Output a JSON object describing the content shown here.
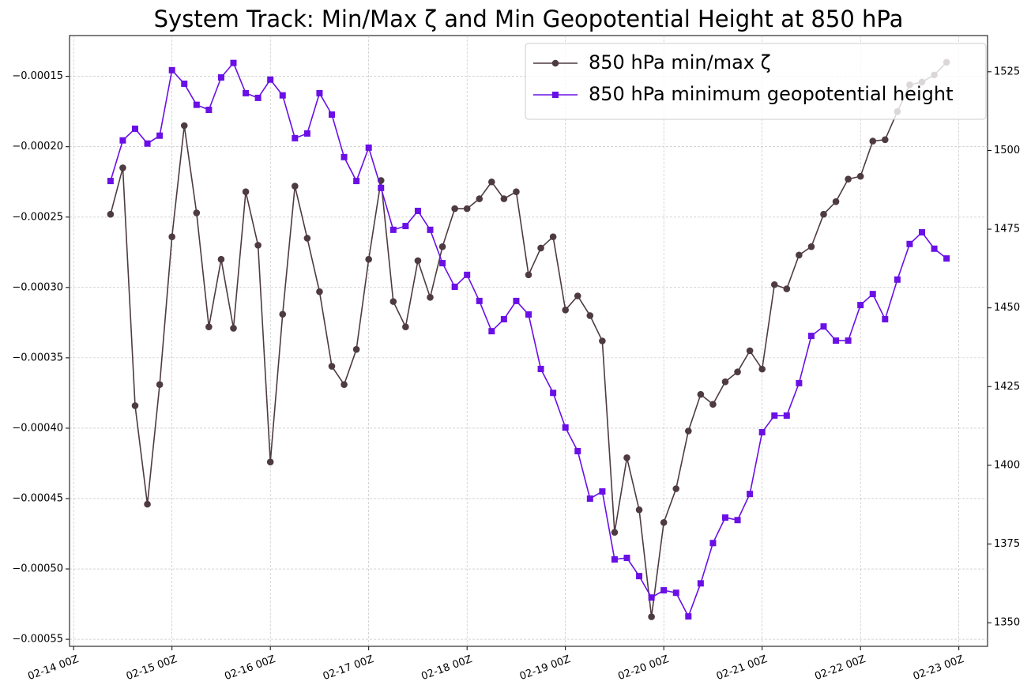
{
  "chart_data": {
    "type": "line",
    "title": "System Track: Min/Max ζ and Min Geopotential Height at 850 hPa",
    "x": [
      "02-14 09Z",
      "02-14 12Z",
      "02-14 15Z",
      "02-14 18Z",
      "02-14 21Z",
      "02-15 00Z",
      "02-15 03Z",
      "02-15 06Z",
      "02-15 09Z",
      "02-15 12Z",
      "02-15 15Z",
      "02-15 18Z",
      "02-15 21Z",
      "02-16 00Z",
      "02-16 03Z",
      "02-16 06Z",
      "02-16 09Z",
      "02-16 12Z",
      "02-16 15Z",
      "02-16 18Z",
      "02-16 21Z",
      "02-17 00Z",
      "02-17 03Z",
      "02-17 06Z",
      "02-17 09Z",
      "02-17 12Z",
      "02-17 15Z",
      "02-17 18Z",
      "02-17 21Z",
      "02-18 00Z",
      "02-18 03Z",
      "02-18 06Z",
      "02-18 09Z",
      "02-18 12Z",
      "02-18 15Z",
      "02-18 18Z",
      "02-18 21Z",
      "02-19 00Z",
      "02-19 03Z",
      "02-19 06Z",
      "02-19 09Z",
      "02-19 12Z",
      "02-19 15Z",
      "02-19 18Z",
      "02-19 21Z",
      "02-20 00Z",
      "02-20 03Z",
      "02-20 06Z",
      "02-20 09Z",
      "02-20 12Z",
      "02-20 15Z",
      "02-20 18Z",
      "02-20 21Z",
      "02-21 00Z",
      "02-21 03Z",
      "02-21 06Z",
      "02-21 09Z",
      "02-21 12Z",
      "02-21 15Z",
      "02-21 18Z",
      "02-21 21Z",
      "02-22 00Z",
      "02-22 03Z",
      "02-22 06Z",
      "02-22 09Z",
      "02-22 12Z",
      "02-22 15Z",
      "02-22 18Z",
      "02-22 21Z"
    ],
    "series": [
      {
        "name": "850 hPa min/max ζ",
        "color": "#4e3b42",
        "marker": "circle",
        "values": [
          -0.000248,
          -0.000215,
          -0.000384,
          -0.000454,
          -0.000369,
          -0.000264,
          -0.000185,
          -0.000247,
          -0.000328,
          -0.00028,
          -0.000329,
          -0.000232,
          -0.00027,
          -0.000424,
          -0.000319,
          -0.000228,
          -0.000265,
          -0.000303,
          -0.000356,
          -0.000369,
          -0.000344,
          -0.00028,
          -0.000224,
          -0.00031,
          -0.000328,
          -0.000281,
          -0.000307,
          -0.000271,
          -0.000244,
          -0.000244,
          -0.000237,
          -0.000225,
          -0.000237,
          -0.000232,
          -0.000291,
          -0.000272,
          -0.000264,
          -0.000316,
          -0.000306,
          -0.00032,
          -0.000338,
          -0.000474,
          -0.000421,
          -0.000458,
          -0.000534,
          -0.000467,
          -0.000443,
          -0.000402,
          -0.000376,
          -0.000383,
          -0.000367,
          -0.00036,
          -0.000345,
          -0.000358,
          -0.000298,
          -0.000301,
          -0.000277,
          -0.000271,
          -0.000248,
          -0.000239,
          -0.000223,
          -0.000221,
          -0.000196,
          -0.000195,
          -0.000175,
          -0.000156,
          -0.000154,
          -0.000149,
          -0.00014
        ]
      },
      {
        "name": "850 hPa minimum geopotential height",
        "color": "#6a10e6",
        "marker": "square",
        "axis": "y2",
        "values": [
          1490.3,
          1503.2,
          1506.9,
          1502.2,
          1504.7,
          1525.5,
          1521.2,
          1514.5,
          1512.9,
          1523.2,
          1527.8,
          1518.2,
          1516.7,
          1522.5,
          1517.5,
          1503.9,
          1505.4,
          1518.2,
          1511.4,
          1497.9,
          1490.3,
          1500.9,
          1488.1,
          1474.8,
          1476.0,
          1480.8,
          1474.8,
          1464.2,
          1456.7,
          1460.5,
          1452.2,
          1442.6,
          1446.4,
          1452.2,
          1447.9,
          1430.6,
          1423.0,
          1412.0,
          1404.5,
          1389.4,
          1391.7,
          1370.1,
          1370.6,
          1364.8,
          1358.0,
          1360.3,
          1359.5,
          1352.0,
          1362.5,
          1375.3,
          1383.4,
          1382.6,
          1390.9,
          1410.5,
          1415.8,
          1415.8,
          1426.1,
          1441.1,
          1444.1,
          1439.6,
          1439.6,
          1450.9,
          1454.4,
          1446.4,
          1459.0,
          1470.3,
          1474.0,
          1468.8,
          1465.7
        ]
      }
    ],
    "xlim": [
      "02-13 23Z",
      "02-23 07Z"
    ],
    "xticks": [
      "02-14 00Z",
      "02-15 00Z",
      "02-16 00Z",
      "02-17 00Z",
      "02-18 00Z",
      "02-19 00Z",
      "02-20 00Z",
      "02-21 00Z",
      "02-22 00Z",
      "02-23 00Z"
    ],
    "ylim": [
      -0.000555,
      -0.000121
    ],
    "yticks": [
      {
        "value": -0.00055,
        "label": "−0.00055"
      },
      {
        "value": -0.0005,
        "label": "−0.00050"
      },
      {
        "value": -0.00045,
        "label": "−0.00045"
      },
      {
        "value": -0.0004,
        "label": "−0.00040"
      },
      {
        "value": -0.00035,
        "label": "−0.00035"
      },
      {
        "value": -0.0003,
        "label": "−0.00030"
      },
      {
        "value": -0.00025,
        "label": "−0.00025"
      },
      {
        "value": -0.0002,
        "label": "−0.00020"
      },
      {
        "value": -0.00015,
        "label": "−0.00015"
      }
    ],
    "y2lim": [
      1342.5,
      1536.5
    ],
    "y2ticks": [
      1350,
      1375,
      1400,
      1425,
      1450,
      1475,
      1500,
      1525
    ],
    "grid": true,
    "legend": "upper right"
  }
}
